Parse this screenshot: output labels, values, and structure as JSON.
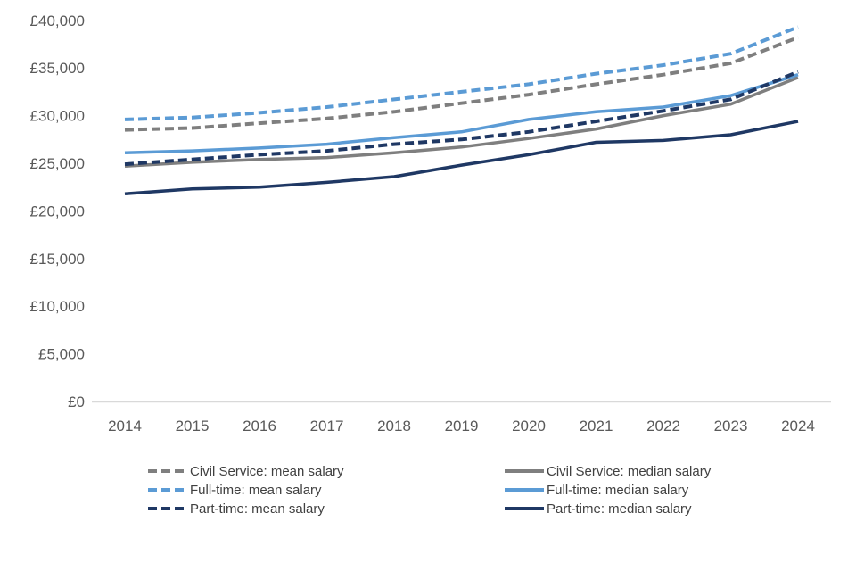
{
  "chart_data": {
    "type": "line",
    "title": "",
    "xlabel": "",
    "ylabel": "",
    "x": [
      2014,
      2015,
      2016,
      2017,
      2018,
      2019,
      2020,
      2021,
      2022,
      2023,
      2024
    ],
    "series": [
      {
        "name": "Civil Service: median salary",
        "color": "#7F7F7F",
        "style": "solid",
        "values": [
          24700,
          25100,
          25400,
          25600,
          26100,
          26700,
          27600,
          28600,
          30000,
          31200,
          34000
        ]
      },
      {
        "name": "Full-time: median salary",
        "color": "#5B9BD5",
        "style": "solid",
        "values": [
          26100,
          26300,
          26600,
          27000,
          27700,
          28300,
          29600,
          30400,
          30900,
          32100,
          34300
        ]
      },
      {
        "name": "Part-time: median salary",
        "color": "#1F3864",
        "style": "solid",
        "values": [
          21800,
          22300,
          22500,
          23000,
          23600,
          24800,
          25900,
          27200,
          27400,
          28000,
          29400
        ]
      },
      {
        "name": "Civil Service: mean salary",
        "color": "#7F7F7F",
        "style": "dashed",
        "values": [
          28500,
          28700,
          29200,
          29700,
          30400,
          31300,
          32200,
          33300,
          34300,
          35500,
          38200
        ]
      },
      {
        "name": "Full-time: mean salary",
        "color": "#5B9BD5",
        "style": "dashed",
        "values": [
          29600,
          29800,
          30300,
          30900,
          31700,
          32500,
          33300,
          34400,
          35300,
          36500,
          39300
        ]
      },
      {
        "name": "Part-time: mean salary",
        "color": "#1F3864",
        "style": "dashed",
        "values": [
          24900,
          25400,
          25900,
          26300,
          27000,
          27500,
          28300,
          29400,
          30500,
          31700,
          34600
        ]
      }
    ],
    "ylim": [
      0,
      40000
    ],
    "ytick_step": 5000,
    "ytick_labels": [
      "£0",
      "£5,000",
      "£10,000",
      "£15,000",
      "£20,000",
      "£25,000",
      "£30,000",
      "£35,000",
      "£40,000"
    ],
    "xtick_labels": [
      "2014",
      "2015",
      "2016",
      "2017",
      "2018",
      "2019",
      "2020",
      "2021",
      "2022",
      "2023",
      "2024"
    ],
    "grid": false,
    "legend_position": "bottom",
    "legend_columns": [
      [
        "Civil Service: mean salary",
        "Full-time: mean salary",
        "Part-time: mean salary"
      ],
      [
        "Civil Service: median salary",
        "Full-time: median salary",
        "Part-time: median salary"
      ]
    ]
  },
  "colors": {
    "background": "#FFFFFF",
    "axis_text": "#595959",
    "legend_text": "#404040",
    "axis_line": "#D9D9D9",
    "gray_series": "#7F7F7F",
    "light_blue_series": "#5B9BD5",
    "navy_series": "#1F3864"
  }
}
